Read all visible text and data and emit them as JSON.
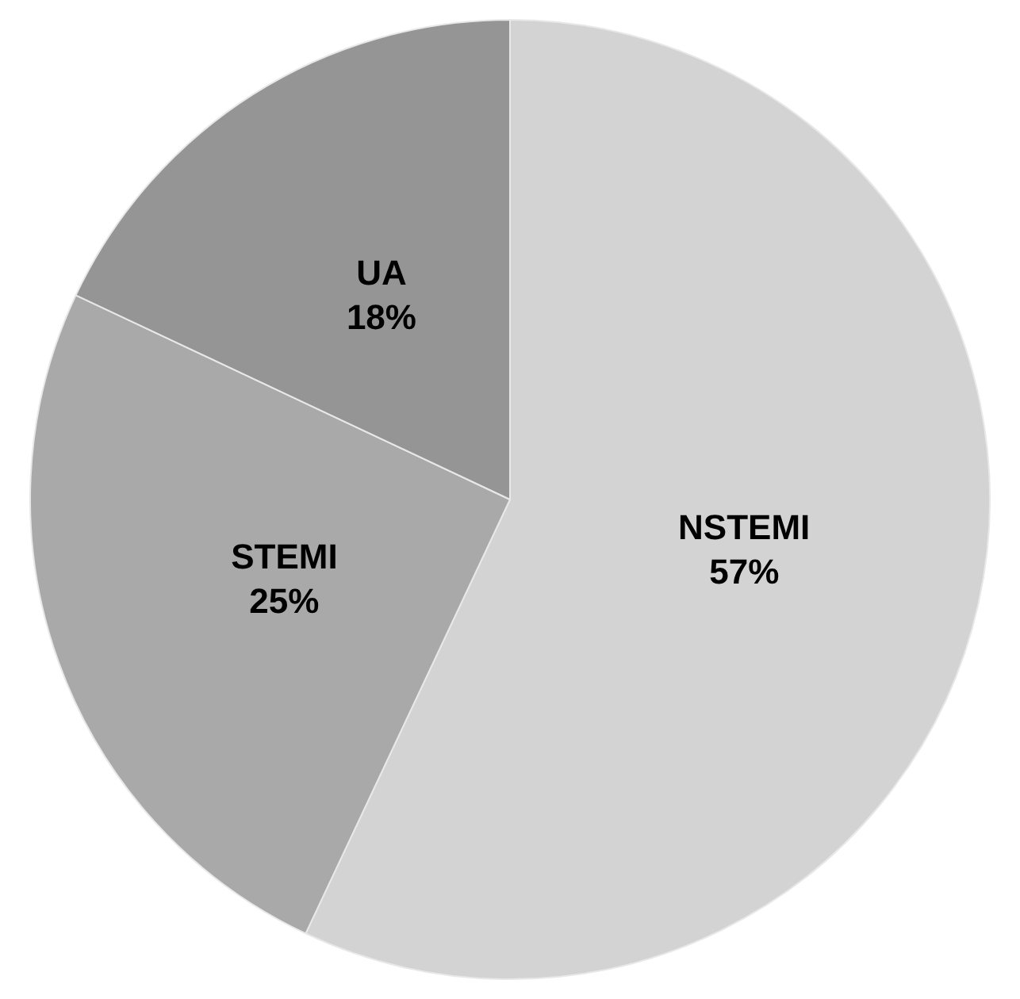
{
  "chart_data": {
    "type": "pie",
    "categories": [
      "NSTEMI",
      "STEMI",
      "UA"
    ],
    "values": [
      57,
      25,
      18
    ],
    "colors": [
      "#d3d3d3",
      "#a9a9a9",
      "#959595"
    ],
    "value_labels": [
      "57%",
      "25%",
      "18%"
    ],
    "legend": false
  }
}
